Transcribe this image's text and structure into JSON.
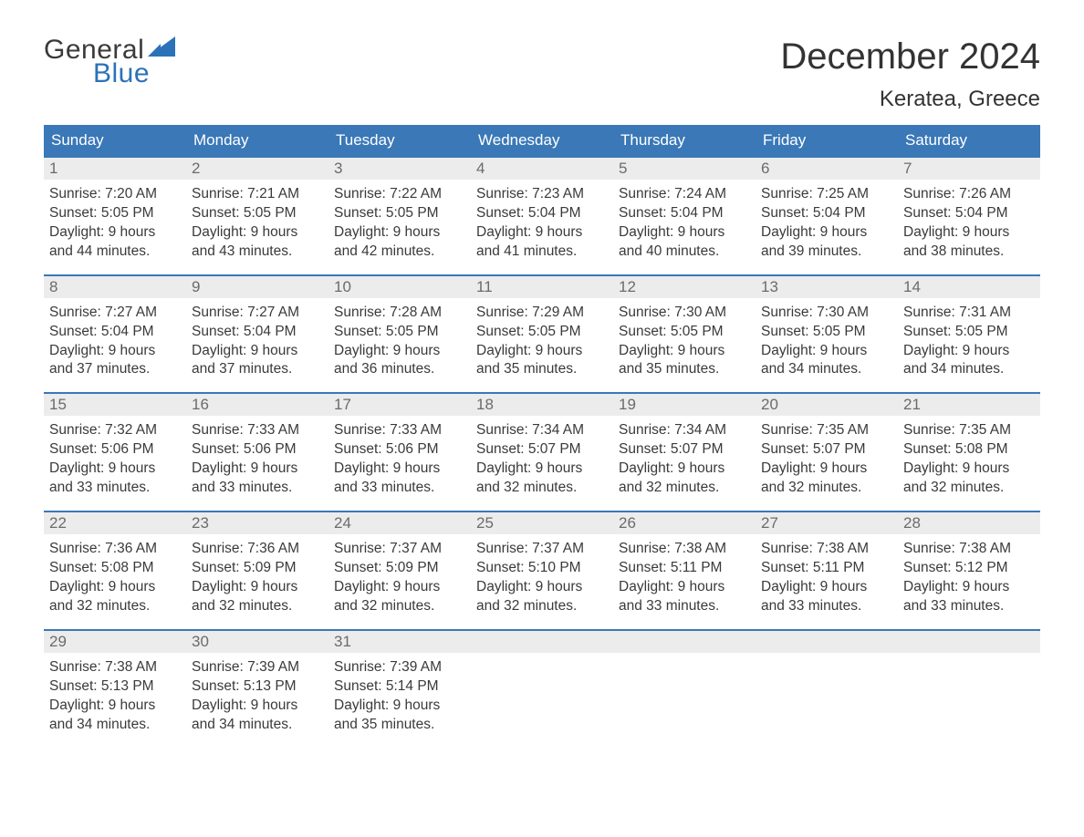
{
  "brand": {
    "line1": "General",
    "line2": "Blue",
    "text_color": "#3a3a3a",
    "accent_color": "#2b72b9"
  },
  "title": "December 2024",
  "location": "Keratea, Greece",
  "colors": {
    "header_bg": "#3a78b7",
    "header_text": "#ffffff",
    "row_top_border": "#3a78b7",
    "daynum_bg": "#ececec",
    "daynum_text": "#6b6b6b",
    "body_text": "#3a3a3a",
    "page_bg": "#ffffff"
  },
  "typography": {
    "title_fontsize": 40,
    "location_fontsize": 24,
    "header_fontsize": 17,
    "body_fontsize": 15.5
  },
  "grid": {
    "columns": 7,
    "rows": 5
  },
  "day_names": [
    "Sunday",
    "Monday",
    "Tuesday",
    "Wednesday",
    "Thursday",
    "Friday",
    "Saturday"
  ],
  "labels": {
    "sunrise": "Sunrise:",
    "sunset": "Sunset:",
    "daylight": "Daylight:"
  },
  "weeks": [
    [
      {
        "num": "1",
        "sunrise": "7:20 AM",
        "sunset": "5:05 PM",
        "daylight_l1": "9 hours",
        "daylight_l2": "and 44 minutes."
      },
      {
        "num": "2",
        "sunrise": "7:21 AM",
        "sunset": "5:05 PM",
        "daylight_l1": "9 hours",
        "daylight_l2": "and 43 minutes."
      },
      {
        "num": "3",
        "sunrise": "7:22 AM",
        "sunset": "5:05 PM",
        "daylight_l1": "9 hours",
        "daylight_l2": "and 42 minutes."
      },
      {
        "num": "4",
        "sunrise": "7:23 AM",
        "sunset": "5:04 PM",
        "daylight_l1": "9 hours",
        "daylight_l2": "and 41 minutes."
      },
      {
        "num": "5",
        "sunrise": "7:24 AM",
        "sunset": "5:04 PM",
        "daylight_l1": "9 hours",
        "daylight_l2": "and 40 minutes."
      },
      {
        "num": "6",
        "sunrise": "7:25 AM",
        "sunset": "5:04 PM",
        "daylight_l1": "9 hours",
        "daylight_l2": "and 39 minutes."
      },
      {
        "num": "7",
        "sunrise": "7:26 AM",
        "sunset": "5:04 PM",
        "daylight_l1": "9 hours",
        "daylight_l2": "and 38 minutes."
      }
    ],
    [
      {
        "num": "8",
        "sunrise": "7:27 AM",
        "sunset": "5:04 PM",
        "daylight_l1": "9 hours",
        "daylight_l2": "and 37 minutes."
      },
      {
        "num": "9",
        "sunrise": "7:27 AM",
        "sunset": "5:04 PM",
        "daylight_l1": "9 hours",
        "daylight_l2": "and 37 minutes."
      },
      {
        "num": "10",
        "sunrise": "7:28 AM",
        "sunset": "5:05 PM",
        "daylight_l1": "9 hours",
        "daylight_l2": "and 36 minutes."
      },
      {
        "num": "11",
        "sunrise": "7:29 AM",
        "sunset": "5:05 PM",
        "daylight_l1": "9 hours",
        "daylight_l2": "and 35 minutes."
      },
      {
        "num": "12",
        "sunrise": "7:30 AM",
        "sunset": "5:05 PM",
        "daylight_l1": "9 hours",
        "daylight_l2": "and 35 minutes."
      },
      {
        "num": "13",
        "sunrise": "7:30 AM",
        "sunset": "5:05 PM",
        "daylight_l1": "9 hours",
        "daylight_l2": "and 34 minutes."
      },
      {
        "num": "14",
        "sunrise": "7:31 AM",
        "sunset": "5:05 PM",
        "daylight_l1": "9 hours",
        "daylight_l2": "and 34 minutes."
      }
    ],
    [
      {
        "num": "15",
        "sunrise": "7:32 AM",
        "sunset": "5:06 PM",
        "daylight_l1": "9 hours",
        "daylight_l2": "and 33 minutes."
      },
      {
        "num": "16",
        "sunrise": "7:33 AM",
        "sunset": "5:06 PM",
        "daylight_l1": "9 hours",
        "daylight_l2": "and 33 minutes."
      },
      {
        "num": "17",
        "sunrise": "7:33 AM",
        "sunset": "5:06 PM",
        "daylight_l1": "9 hours",
        "daylight_l2": "and 33 minutes."
      },
      {
        "num": "18",
        "sunrise": "7:34 AM",
        "sunset": "5:07 PM",
        "daylight_l1": "9 hours",
        "daylight_l2": "and 32 minutes."
      },
      {
        "num": "19",
        "sunrise": "7:34 AM",
        "sunset": "5:07 PM",
        "daylight_l1": "9 hours",
        "daylight_l2": "and 32 minutes."
      },
      {
        "num": "20",
        "sunrise": "7:35 AM",
        "sunset": "5:07 PM",
        "daylight_l1": "9 hours",
        "daylight_l2": "and 32 minutes."
      },
      {
        "num": "21",
        "sunrise": "7:35 AM",
        "sunset": "5:08 PM",
        "daylight_l1": "9 hours",
        "daylight_l2": "and 32 minutes."
      }
    ],
    [
      {
        "num": "22",
        "sunrise": "7:36 AM",
        "sunset": "5:08 PM",
        "daylight_l1": "9 hours",
        "daylight_l2": "and 32 minutes."
      },
      {
        "num": "23",
        "sunrise": "7:36 AM",
        "sunset": "5:09 PM",
        "daylight_l1": "9 hours",
        "daylight_l2": "and 32 minutes."
      },
      {
        "num": "24",
        "sunrise": "7:37 AM",
        "sunset": "5:09 PM",
        "daylight_l1": "9 hours",
        "daylight_l2": "and 32 minutes."
      },
      {
        "num": "25",
        "sunrise": "7:37 AM",
        "sunset": "5:10 PM",
        "daylight_l1": "9 hours",
        "daylight_l2": "and 32 minutes."
      },
      {
        "num": "26",
        "sunrise": "7:38 AM",
        "sunset": "5:11 PM",
        "daylight_l1": "9 hours",
        "daylight_l2": "and 33 minutes."
      },
      {
        "num": "27",
        "sunrise": "7:38 AM",
        "sunset": "5:11 PM",
        "daylight_l1": "9 hours",
        "daylight_l2": "and 33 minutes."
      },
      {
        "num": "28",
        "sunrise": "7:38 AM",
        "sunset": "5:12 PM",
        "daylight_l1": "9 hours",
        "daylight_l2": "and 33 minutes."
      }
    ],
    [
      {
        "num": "29",
        "sunrise": "7:38 AM",
        "sunset": "5:13 PM",
        "daylight_l1": "9 hours",
        "daylight_l2": "and 34 minutes."
      },
      {
        "num": "30",
        "sunrise": "7:39 AM",
        "sunset": "5:13 PM",
        "daylight_l1": "9 hours",
        "daylight_l2": "and 34 minutes."
      },
      {
        "num": "31",
        "sunrise": "7:39 AM",
        "sunset": "5:14 PM",
        "daylight_l1": "9 hours",
        "daylight_l2": "and 35 minutes."
      },
      {
        "empty": true
      },
      {
        "empty": true
      },
      {
        "empty": true
      },
      {
        "empty": true
      }
    ]
  ]
}
